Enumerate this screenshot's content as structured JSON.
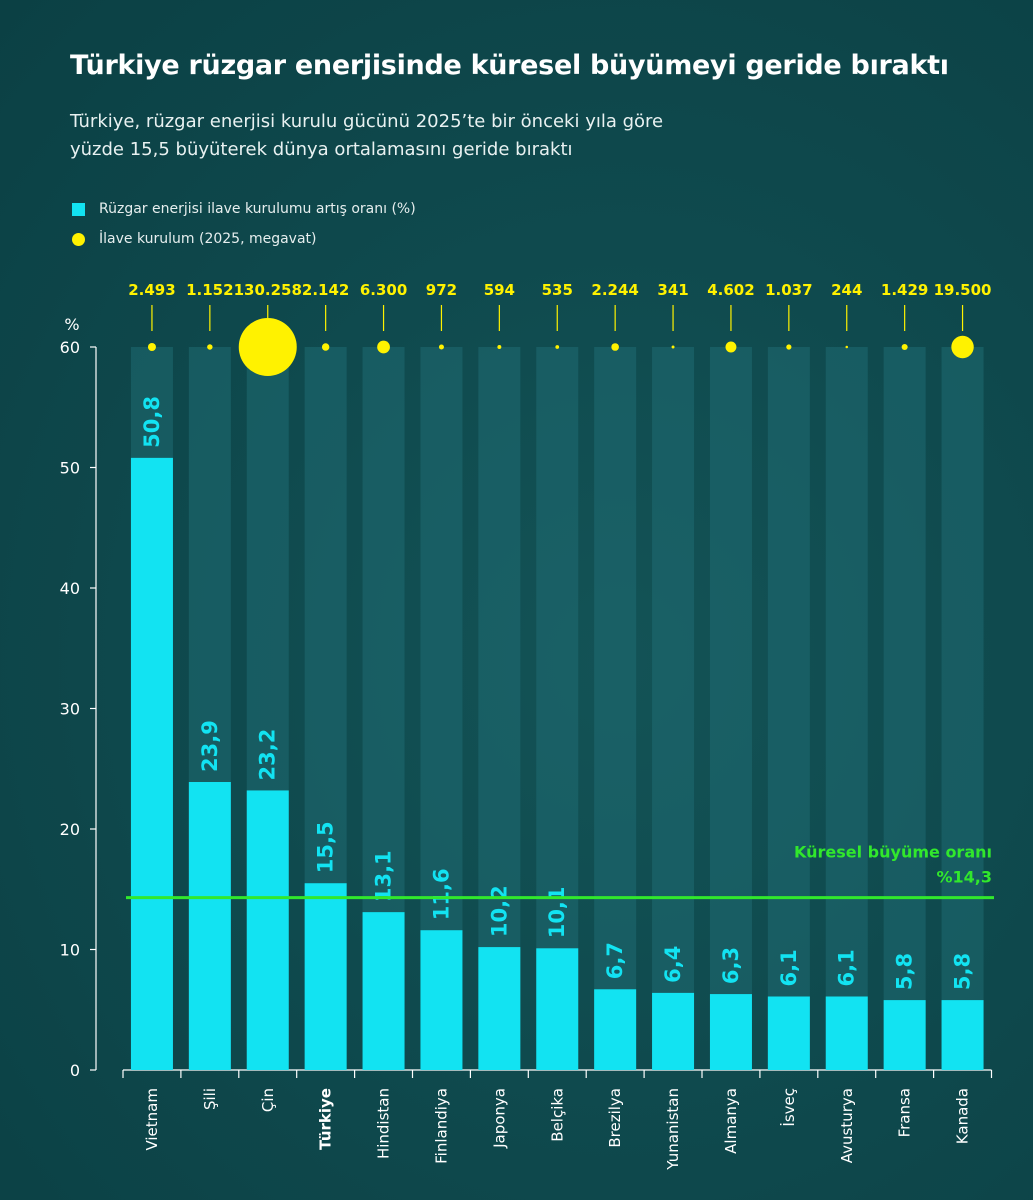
{
  "header": {
    "title": "Türkiye rüzgar enerjisinde küresel büyümeyi geride bıraktı",
    "subtitle_line1": "Türkiye, rüzgar enerjisi kurulu gücünü 2025’te bir önceki yıla göre",
    "subtitle_line2": "yüzde 15,5 büyüterek dünya ortalamasını geride bıraktı"
  },
  "legend": {
    "bar_label": "Rüzgar enerjisi ilave kurulumu artış oranı (%)",
    "dot_label": "İlave kurulum (2025, megavat)"
  },
  "colors": {
    "bar": "#12e3f2",
    "bar_track": "#1f6b72",
    "dot": "#fff200",
    "reference_line": "#31e82c",
    "axis": "#ffffff"
  },
  "chart_data": {
    "type": "bar",
    "title": "Türkiye rüzgar enerjisinde küresel büyümeyi geride bıraktı",
    "ylabel": "%",
    "ylim": [
      0,
      60
    ],
    "yticks": [
      0,
      10,
      20,
      30,
      40,
      50,
      60
    ],
    "categories": [
      "Vietnam",
      "Şili",
      "Çin",
      "Türkiye",
      "Hindistan",
      "Finlandiya",
      "Japonya",
      "Belçika",
      "Brezilya",
      "Yunanistan",
      "Almanya",
      "İsveç",
      "Avusturya",
      "Fransa",
      "Kanada"
    ],
    "highlight_category": "Türkiye",
    "series": [
      {
        "name": "Rüzgar enerjisi ilave kurulumu artış oranı (%)",
        "values": [
          50.8,
          23.9,
          23.2,
          15.5,
          13.1,
          11.6,
          10.2,
          10.1,
          6.7,
          6.4,
          6.3,
          6.1,
          6.1,
          5.8,
          5.8
        ],
        "labels": [
          "50,8",
          "23,9",
          "23,2",
          "15,5",
          "13,1",
          "11,6",
          "10,2",
          "10,1",
          "6,7",
          "6,4",
          "6,3",
          "6,1",
          "6,1",
          "5,8",
          "5,8"
        ]
      },
      {
        "name": "İlave kurulum (2025, megavat)",
        "values": [
          2493,
          1152,
          130258,
          2142,
          6300,
          972,
          594,
          535,
          2244,
          341,
          4602,
          1037,
          244,
          1429,
          19500
        ],
        "labels": [
          "2.493",
          "1.152",
          "130.258",
          "2.142",
          "6.300",
          "972",
          "594",
          "535",
          "2.244",
          "341",
          "4.602",
          "1.037",
          "244",
          "1.429",
          "19.500"
        ]
      }
    ],
    "reference_line": {
      "value": 14.3,
      "label_line1": "Küresel büyüme oranı",
      "label_line2": "%14,3"
    }
  }
}
